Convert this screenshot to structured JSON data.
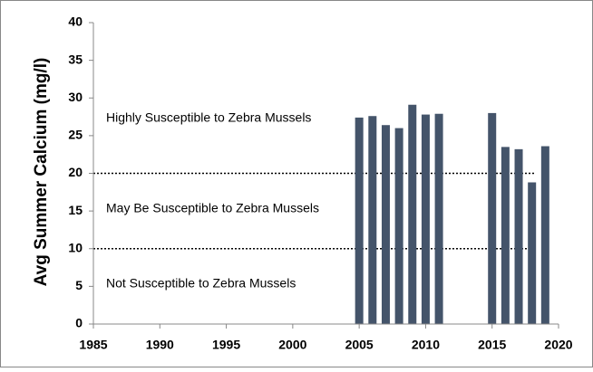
{
  "chart_data": {
    "type": "bar",
    "y_label": "Avg Summer Calcium (mg/l)",
    "x": [
      2005,
      2006,
      2007,
      2008,
      2009,
      2010,
      2011,
      2015,
      2016,
      2017,
      2018,
      2019
    ],
    "values": [
      27.4,
      27.6,
      26.4,
      26.0,
      29.1,
      27.8,
      27.9,
      28.0,
      23.5,
      23.2,
      18.8,
      23.6
    ],
    "color": "#44546a",
    "xlim": [
      1985,
      2020
    ],
    "xticks": [
      1985,
      1990,
      1995,
      2000,
      2005,
      2010,
      2015,
      2020
    ],
    "ylim": [
      0,
      40
    ],
    "yticks": [
      0,
      5,
      10,
      15,
      20,
      25,
      30,
      35,
      40
    ],
    "reference_lines": [
      20,
      10
    ],
    "annotations": [
      "Highly Susceptible to Zebra Mussels",
      "May Be Susceptible to Zebra Mussels",
      "Not Susceptible to Zebra Mussels"
    ]
  }
}
